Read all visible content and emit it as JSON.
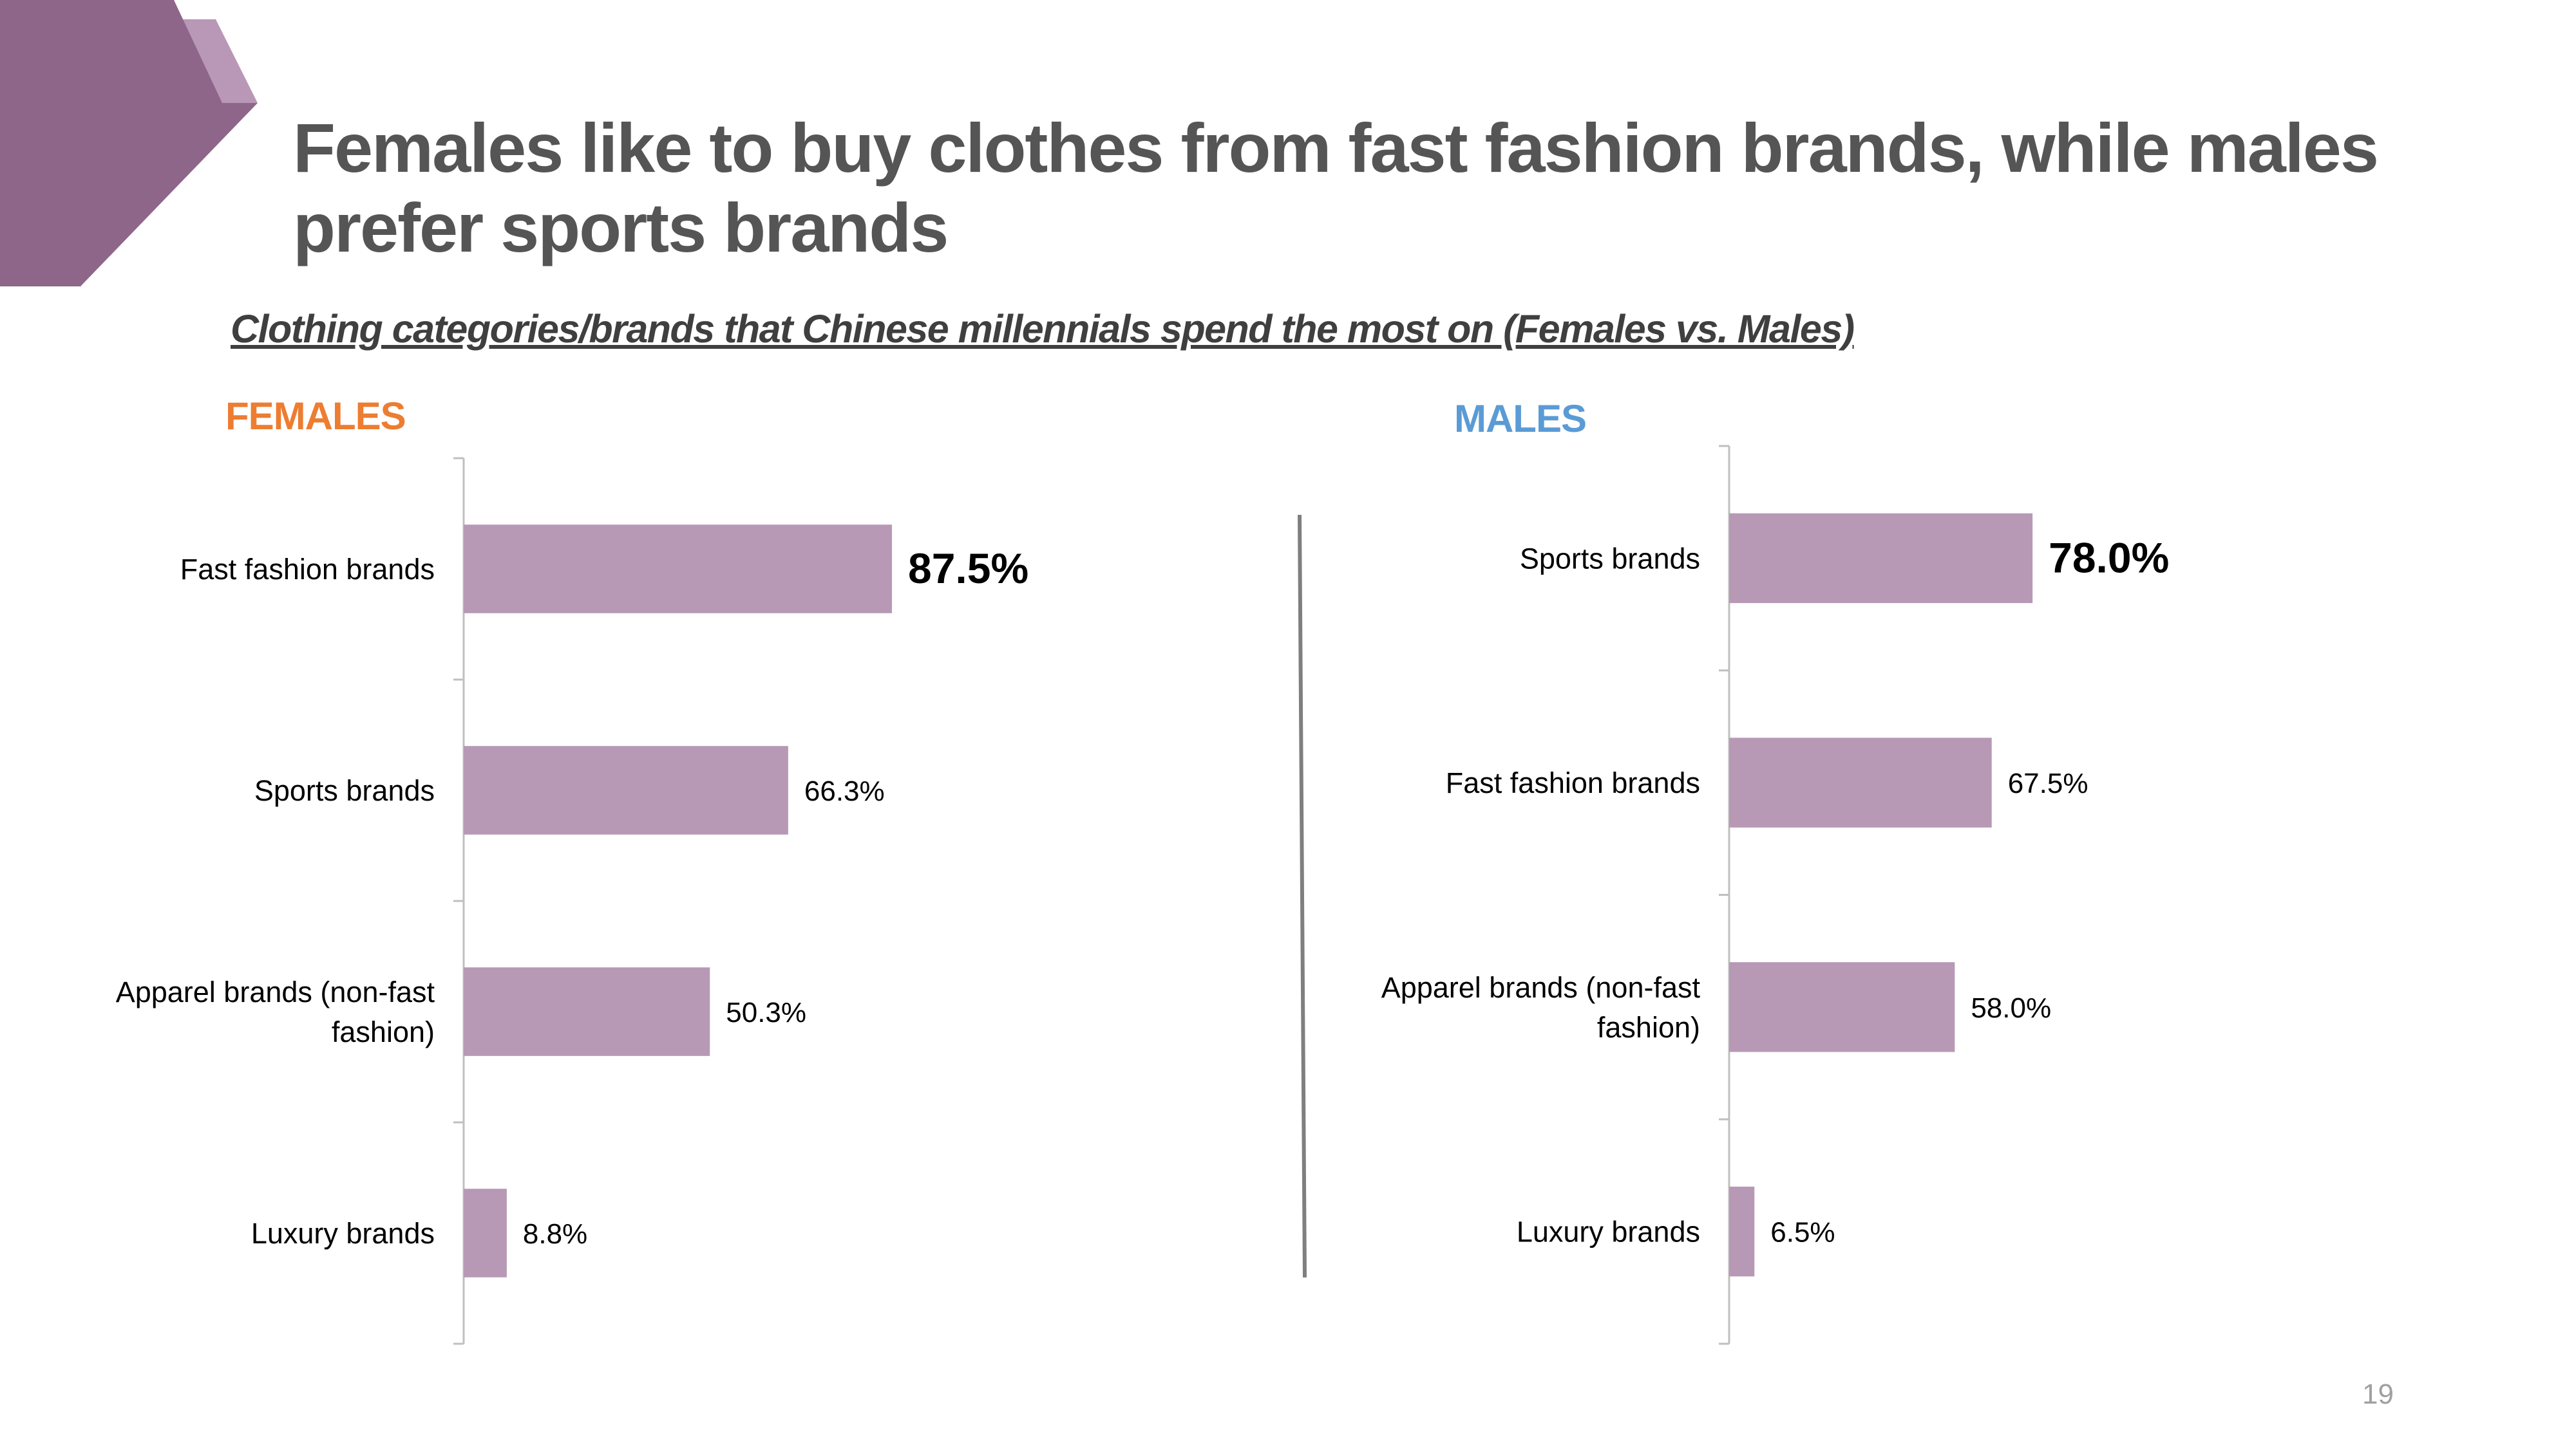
{
  "header": {
    "title": "Females like to buy clothes from fast fashion brands, while males prefer sports brands",
    "subtitle": "Clothing categories/brands that Chinese millennials spend the most on (Females vs. Males)"
  },
  "colors": {
    "bar": "#b799b5",
    "accent_dark": "#8e6689",
    "accent_light": "#b898b6",
    "females_label": "#ed7d31",
    "males_label": "#5b9bd5"
  },
  "chart_data": [
    {
      "type": "bar",
      "orientation": "horizontal",
      "title": "FEMALES",
      "categories": [
        "Fast fashion brands",
        "Sports brands",
        "Apparel brands (non-fast fashion)",
        "Luxury brands"
      ],
      "values": [
        87.5,
        66.3,
        50.3,
        8.8
      ],
      "value_labels": [
        "87.5%",
        "66.3%",
        "50.3%",
        "8.8%"
      ],
      "xlim": [
        0,
        100
      ],
      "grid": false
    },
    {
      "type": "bar",
      "orientation": "horizontal",
      "title": "MALES",
      "categories": [
        "Sports brands",
        "Fast fashion brands",
        "Apparel brands (non-fast fashion)",
        "Luxury brands"
      ],
      "values": [
        78.0,
        67.5,
        58.0,
        6.5
      ],
      "value_labels": [
        "78.0%",
        "67.5%",
        "58.0%",
        "6.5%"
      ],
      "xlim": [
        0,
        100
      ],
      "grid": false
    }
  ],
  "footer": {
    "page_number": "19"
  }
}
